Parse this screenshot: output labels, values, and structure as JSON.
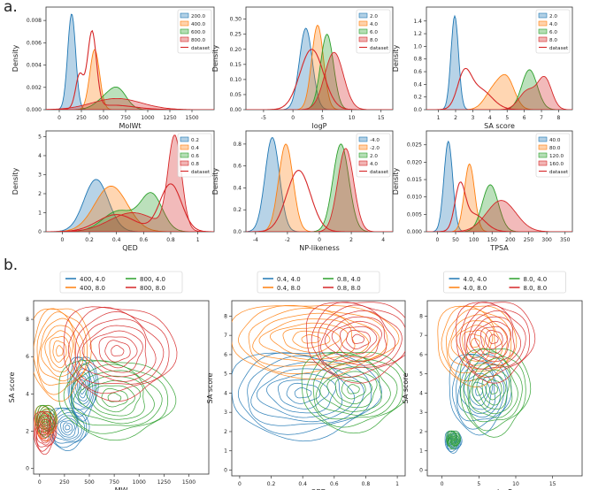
{
  "panel_labels": {
    "a": "a.",
    "b": "b."
  },
  "colors": {
    "blue": "#1f77b4",
    "orange": "#ff7f0e",
    "green": "#2ca02c",
    "red": "#d62728",
    "axis": "#333333",
    "text": "#222222"
  },
  "chart_data": [
    {
      "id": "molwt",
      "type": "area",
      "xlabel": "MolWt",
      "ylabel": "Density",
      "xlim": [
        -150,
        1750
      ],
      "ylim": [
        0,
        0.0092
      ],
      "xticks": [
        0,
        250,
        500,
        750,
        1000,
        1250,
        1500
      ],
      "yticks": [
        0.0,
        0.002,
        0.004,
        0.006,
        0.008
      ],
      "ytick_labels": [
        "0.000",
        "0.002",
        "0.004",
        "0.006",
        "0.008"
      ],
      "legend": [
        "200.0",
        "400.0",
        "600.0",
        "800.0",
        "dataset"
      ],
      "series": [
        {
          "name": "200.0",
          "peaks": [
            {
              "mu": 140,
              "sd": 45,
              "h": 0.0086
            }
          ]
        },
        {
          "name": "400.0",
          "peaks": [
            {
              "mu": 400,
              "sd": 55,
              "h": 0.0054
            }
          ]
        },
        {
          "name": "600.0",
          "peaks": [
            {
              "mu": 570,
              "sd": 130,
              "h": 0.0013
            },
            {
              "mu": 680,
              "sd": 90,
              "h": 0.001
            }
          ]
        },
        {
          "name": "800.0",
          "peaks": [
            {
              "mu": 650,
              "sd": 280,
              "h": 0.001
            }
          ]
        }
      ],
      "dataset": {
        "peaks": [
          {
            "mu": 230,
            "sd": 45,
            "h": 0.003
          },
          {
            "mu": 370,
            "sd": 50,
            "h": 0.0068
          },
          {
            "mu": 600,
            "sd": 250,
            "h": 0.0004
          }
        ]
      }
    },
    {
      "id": "logp",
      "type": "area",
      "xlabel": "logP",
      "ylabel": "Density",
      "xlim": [
        -8,
        17
      ],
      "ylim": [
        0,
        0.34
      ],
      "xticks": [
        -5,
        0,
        5,
        10,
        15
      ],
      "yticks": [
        0.0,
        0.05,
        0.1,
        0.15,
        0.2,
        0.25,
        0.3
      ],
      "ytick_labels": [
        "0.00",
        "0.05",
        "0.10",
        "0.15",
        "0.20",
        "0.25",
        "0.30"
      ],
      "legend": [
        "2.0",
        "4.0",
        "6.0",
        "8.0",
        "dataset"
      ],
      "series": [
        {
          "name": "2.0",
          "peaks": [
            {
              "mu": 2.2,
              "sd": 1.1,
              "h": 0.27
            }
          ]
        },
        {
          "name": "4.0",
          "peaks": [
            {
              "mu": 4.2,
              "sd": 1.0,
              "h": 0.28
            }
          ]
        },
        {
          "name": "6.0",
          "peaks": [
            {
              "mu": 5.8,
              "sd": 1.1,
              "h": 0.25
            }
          ]
        },
        {
          "name": "8.0",
          "peaks": [
            {
              "mu": 7.0,
              "sd": 1.6,
              "h": 0.19
            }
          ]
        }
      ],
      "dataset": {
        "peaks": [
          {
            "mu": 3.2,
            "sd": 2.0,
            "h": 0.2
          }
        ]
      }
    },
    {
      "id": "sascore",
      "type": "area",
      "xlabel": "SA score",
      "ylabel": "Density",
      "xlim": [
        0.3,
        8.8
      ],
      "ylim": [
        0,
        1.62
      ],
      "xticks": [
        1,
        2,
        3,
        4,
        5,
        6,
        7,
        8
      ],
      "yticks": [
        0.0,
        0.2,
        0.4,
        0.6,
        0.8,
        1.0,
        1.2,
        1.4
      ],
      "ytick_labels": [
        "0.0",
        "0.2",
        "0.4",
        "0.6",
        "0.8",
        "1.0",
        "1.2",
        "1.4"
      ],
      "legend": [
        "2.0",
        "4.0",
        "6.0",
        "8.0",
        "dataset"
      ],
      "series": [
        {
          "name": "2.0",
          "peaks": [
            {
              "mu": 1.95,
              "sd": 0.22,
              "h": 1.48
            }
          ]
        },
        {
          "name": "4.0",
          "peaks": [
            {
              "mu": 4.2,
              "sd": 0.5,
              "h": 0.3
            },
            {
              "mu": 5.0,
              "sd": 0.45,
              "h": 0.45
            }
          ]
        },
        {
          "name": "6.0",
          "peaks": [
            {
              "mu": 6.3,
              "sd": 0.45,
              "h": 0.63
            }
          ]
        },
        {
          "name": "8.0",
          "peaks": [
            {
              "mu": 6.2,
              "sd": 0.5,
              "h": 0.3
            },
            {
              "mu": 7.2,
              "sd": 0.4,
              "h": 0.48
            }
          ]
        }
      ],
      "dataset": {
        "peaks": [
          {
            "mu": 2.5,
            "sd": 0.4,
            "h": 0.5
          },
          {
            "mu": 3.4,
            "sd": 0.7,
            "h": 0.32
          }
        ]
      }
    },
    {
      "id": "qed",
      "type": "area",
      "xlabel": "QED",
      "ylabel": "Density",
      "xlim": [
        -0.12,
        1.12
      ],
      "ylim": [
        0,
        5.3
      ],
      "xticks": [
        0.0,
        0.2,
        0.4,
        0.6,
        0.8,
        1.0
      ],
      "yticks": [
        0,
        1,
        2,
        3,
        4,
        5
      ],
      "ytick_labels": [
        "0",
        "1",
        "2",
        "3",
        "4",
        "5"
      ],
      "legend": [
        "0.2",
        "0.4",
        "0.6",
        "0.8",
        "dataset"
      ],
      "series": [
        {
          "name": "0.2",
          "peaks": [
            {
              "mu": 0.25,
              "sd": 0.09,
              "h": 2.75
            }
          ]
        },
        {
          "name": "0.4",
          "peaks": [
            {
              "mu": 0.36,
              "sd": 0.12,
              "h": 2.4
            }
          ]
        },
        {
          "name": "0.6",
          "peaks": [
            {
              "mu": 0.42,
              "sd": 0.12,
              "h": 1.1
            },
            {
              "mu": 0.66,
              "sd": 0.08,
              "h": 1.9
            }
          ]
        },
        {
          "name": "0.8",
          "peaks": [
            {
              "mu": 0.52,
              "sd": 0.17,
              "h": 1.0
            },
            {
              "mu": 0.83,
              "sd": 0.05,
              "h": 4.9
            }
          ]
        }
      ],
      "dataset": {
        "peaks": [
          {
            "mu": 0.4,
            "sd": 0.14,
            "h": 0.9
          },
          {
            "mu": 0.8,
            "sd": 0.08,
            "h": 2.5
          }
        ]
      }
    },
    {
      "id": "np",
      "type": "area",
      "xlabel": "NP-likeness",
      "ylabel": "Density",
      "xlim": [
        -4.6,
        4.6
      ],
      "ylim": [
        0,
        0.92
      ],
      "xticks": [
        -4,
        -2,
        0,
        2,
        4
      ],
      "yticks": [
        0.0,
        0.2,
        0.4,
        0.6,
        0.8
      ],
      "ytick_labels": [
        "0.0",
        "0.2",
        "0.4",
        "0.6",
        "0.8"
      ],
      "legend": [
        "-4.0",
        "-2.0",
        "2.0",
        "4.0",
        "dataset"
      ],
      "series": [
        {
          "name": "-4.0",
          "peaks": [
            {
              "mu": -2.95,
              "sd": 0.45,
              "h": 0.86
            }
          ]
        },
        {
          "name": "-2.0",
          "peaks": [
            {
              "mu": -2.1,
              "sd": 0.45,
              "h": 0.8
            }
          ]
        },
        {
          "name": "2.0",
          "peaks": [
            {
              "mu": 1.35,
              "sd": 0.5,
              "h": 0.8
            }
          ]
        },
        {
          "name": "4.0",
          "peaks": [
            {
              "mu": 1.65,
              "sd": 0.5,
              "h": 0.76
            }
          ]
        }
      ],
      "dataset": {
        "peaks": [
          {
            "mu": -1.3,
            "sd": 0.75,
            "h": 0.56
          }
        ]
      }
    },
    {
      "id": "tpsa",
      "type": "area",
      "xlabel": "TPSA",
      "ylabel": "Density",
      "xlim": [
        -30,
        370
      ],
      "ylim": [
        0,
        0.029
      ],
      "xticks": [
        0,
        50,
        100,
        150,
        200,
        250,
        300,
        350
      ],
      "yticks": [
        0.0,
        0.005,
        0.01,
        0.015,
        0.02,
        0.025
      ],
      "ytick_labels": [
        "0.000",
        "0.005",
        "0.010",
        "0.015",
        "0.020",
        "0.025"
      ],
      "legend": [
        "40.0",
        "80.0",
        "120.0",
        "160.0",
        "dataset"
      ],
      "series": [
        {
          "name": "40.0",
          "peaks": [
            {
              "mu": 30,
              "sd": 12,
              "h": 0.026
            }
          ]
        },
        {
          "name": "80.0",
          "peaks": [
            {
              "mu": 88,
              "sd": 14,
              "h": 0.0195
            }
          ]
        },
        {
          "name": "120.0",
          "peaks": [
            {
              "mu": 145,
              "sd": 22,
              "h": 0.0135
            }
          ]
        },
        {
          "name": "160.0",
          "peaks": [
            {
              "mu": 175,
              "sd": 40,
              "h": 0.009
            }
          ]
        }
      ],
      "dataset": {
        "peaks": [
          {
            "mu": 62,
            "sd": 14,
            "h": 0.012
          },
          {
            "mu": 100,
            "sd": 30,
            "h": 0.005
          }
        ]
      }
    },
    {
      "id": "mw_sa",
      "type": "contour",
      "xlabel": "MW",
      "ylabel": "SA score",
      "xlim": [
        -60,
        1700
      ],
      "ylim": [
        -0.3,
        9
      ],
      "xticks": [
        0,
        250,
        500,
        750,
        1000,
        1250,
        1500
      ],
      "yticks": [
        0,
        2,
        4,
        6,
        8
      ],
      "legend": [
        "400, 4.0",
        "400, 8.0",
        "800, 4.0",
        "800, 8.0"
      ],
      "series": [
        {
          "name": "400, 4.0",
          "color": "blue",
          "blobs": [
            {
              "x": 430,
              "y": 4.4,
              "sx": 80,
              "sy": 0.9,
              "rot": 0
            },
            {
              "x": 280,
              "y": 2.2,
              "sx": 110,
              "sy": 0.6,
              "rot": 0
            }
          ]
        },
        {
          "name": "400, 8.0",
          "color": "orange",
          "blobs": [
            {
              "x": 200,
              "y": 6.3,
              "sx": 160,
              "sy": 1.3,
              "rot": 0
            },
            {
              "x": 60,
              "y": 2.5,
              "sx": 60,
              "sy": 0.5,
              "rot": 0
            }
          ]
        },
        {
          "name": "800, 4.0",
          "color": "green",
          "blobs": [
            {
              "x": 750,
              "y": 3.8,
              "sx": 310,
              "sy": 1.1,
              "rot": 0.08
            },
            {
              "x": 60,
              "y": 2.6,
              "sx": 55,
              "sy": 0.45,
              "rot": 0
            }
          ]
        },
        {
          "name": "800, 8.0",
          "color": "red",
          "blobs": [
            {
              "x": 780,
              "y": 6.3,
              "sx": 300,
              "sy": 1.3,
              "rot": 0.1
            },
            {
              "x": 50,
              "y": 2.0,
              "sx": 60,
              "sy": 0.6,
              "rot": 0
            }
          ]
        }
      ]
    },
    {
      "id": "qed_sa",
      "type": "contour",
      "xlabel": "QED",
      "ylabel": "SA score",
      "xlim": [
        -0.05,
        1.05
      ],
      "ylim": [
        -0.3,
        8.8
      ],
      "xticks": [
        0.0,
        0.2,
        0.4,
        0.6,
        0.8,
        1.0
      ],
      "yticks": [
        0,
        1,
        2,
        3,
        4,
        5,
        6,
        7,
        8
      ],
      "legend": [
        "0.4, 4.0",
        "0.4, 8.0",
        "0.8, 4.0",
        "0.8, 8.0"
      ],
      "series": [
        {
          "name": "0.4, 4.0",
          "color": "blue",
          "blobs": [
            {
              "x": 0.4,
              "y": 4.0,
              "sx": 0.25,
              "sy": 1.2,
              "rot": 0
            }
          ]
        },
        {
          "name": "0.4, 8.0",
          "color": "orange",
          "blobs": [
            {
              "x": 0.45,
              "y": 6.8,
              "sx": 0.28,
              "sy": 1.0,
              "rot": 0
            }
          ]
        },
        {
          "name": "0.8, 4.0",
          "color": "green",
          "blobs": [
            {
              "x": 0.72,
              "y": 4.2,
              "sx": 0.18,
              "sy": 1.1,
              "rot": 0
            }
          ]
        },
        {
          "name": "0.8, 8.0",
          "color": "red",
          "blobs": [
            {
              "x": 0.75,
              "y": 6.8,
              "sx": 0.18,
              "sy": 1.1,
              "rot": 0
            }
          ]
        }
      ]
    },
    {
      "id": "logp_sa",
      "type": "contour",
      "xlabel": "logP",
      "ylabel": "SA score",
      "xlim": [
        -2,
        19
      ],
      "ylim": [
        -0.3,
        8.8
      ],
      "xticks": [
        0,
        5,
        10,
        15
      ],
      "yticks": [
        0,
        1,
        2,
        3,
        4,
        5,
        6,
        7,
        8
      ],
      "legend": [
        "4.0, 4.0",
        "4.0, 8.0",
        "8.0, 4.0",
        "8.0, 8.0"
      ],
      "series": [
        {
          "name": "4.0, 4.0",
          "color": "blue",
          "blobs": [
            {
              "x": 5.0,
              "y": 4.1,
              "sx": 2.2,
              "sy": 1.1,
              "rot": 0
            },
            {
              "x": 1.5,
              "y": 1.5,
              "sx": 0.6,
              "sy": 0.3,
              "rot": 0
            }
          ]
        },
        {
          "name": "4.0, 8.0",
          "color": "orange",
          "blobs": [
            {
              "x": 4.5,
              "y": 6.6,
              "sx": 2.8,
              "sy": 1.1,
              "rot": 0
            }
          ]
        },
        {
          "name": "8.0, 4.0",
          "color": "green",
          "blobs": [
            {
              "x": 7.0,
              "y": 4.2,
              "sx": 2.5,
              "sy": 1.2,
              "rot": 0
            },
            {
              "x": 1.5,
              "y": 1.6,
              "sx": 0.5,
              "sy": 0.25,
              "rot": 0
            }
          ]
        },
        {
          "name": "8.0, 8.0",
          "color": "red",
          "blobs": [
            {
              "x": 7.0,
              "y": 6.8,
              "sx": 2.8,
              "sy": 1.1,
              "rot": 0
            }
          ]
        }
      ]
    }
  ]
}
